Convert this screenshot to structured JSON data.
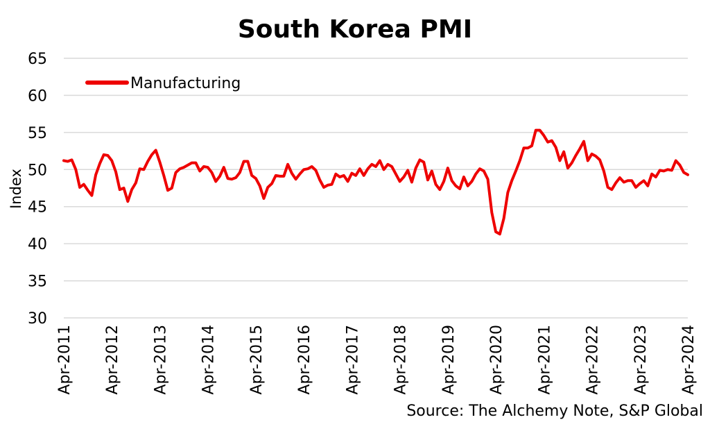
{
  "chart_data": {
    "type": "line",
    "title": "South Korea PMI",
    "ylabel": "Index",
    "xlabel": "",
    "source": "Source: The Alchemy Note, S&P Global",
    "ylim": [
      30,
      65
    ],
    "yticks": [
      30,
      35,
      40,
      45,
      50,
      55,
      60,
      65
    ],
    "grid": true,
    "legend_position": "top-left",
    "line_color": "#ee0000",
    "x_start": "Apr-2011",
    "x_end": "Apr-2024",
    "xtick_labels": [
      "Apr-2011",
      "Apr-2012",
      "Apr-2013",
      "Apr-2014",
      "Apr-2015",
      "Apr-2016",
      "Apr-2017",
      "Apr-2018",
      "Apr-2019",
      "Apr-2020",
      "Apr-2021",
      "Apr-2022",
      "Apr-2023",
      "Apr-2024"
    ],
    "series": [
      {
        "name": "Manufacturing",
        "values": [
          51.2,
          51.1,
          51.3,
          50.0,
          47.6,
          48.0,
          47.2,
          46.5,
          49.3,
          50.8,
          52.0,
          51.9,
          51.2,
          49.7,
          47.3,
          47.5,
          45.7,
          47.3,
          48.2,
          50.1,
          50.0,
          51.1,
          52.0,
          52.6,
          51.0,
          49.2,
          47.2,
          47.5,
          49.6,
          50.1,
          50.3,
          50.6,
          50.9,
          50.9,
          49.8,
          50.4,
          50.3,
          49.6,
          48.4,
          49.1,
          50.3,
          48.8,
          48.7,
          48.9,
          49.6,
          51.1,
          51.1,
          49.2,
          48.8,
          47.8,
          46.1,
          47.6,
          48.1,
          49.2,
          49.1,
          49.1,
          50.7,
          49.5,
          48.7,
          49.4,
          50.0,
          50.1,
          50.4,
          49.9,
          48.6,
          47.6,
          47.9,
          48.0,
          49.4,
          49.0,
          49.2,
          48.4,
          49.5,
          49.2,
          50.1,
          49.2,
          50.1,
          50.7,
          50.4,
          51.2,
          50.0,
          50.7,
          50.4,
          49.4,
          48.4,
          49.0,
          49.9,
          48.3,
          50.2,
          51.3,
          51.0,
          48.6,
          49.8,
          48.0,
          47.3,
          48.4,
          50.2,
          48.5,
          47.8,
          47.4,
          49.0,
          47.8,
          48.4,
          49.4,
          50.1,
          49.8,
          48.7,
          44.2,
          41.6,
          41.3,
          43.4,
          46.9,
          48.5,
          49.8,
          51.2,
          52.9,
          52.9,
          53.2,
          55.3,
          55.3,
          54.6,
          53.7,
          53.9,
          53.0,
          51.2,
          52.4,
          50.2,
          50.9,
          51.9,
          52.8,
          53.8,
          51.2,
          52.1,
          51.8,
          51.3,
          49.8,
          47.6,
          47.3,
          48.2,
          48.9,
          48.3,
          48.5,
          48.5,
          47.6,
          48.1,
          48.5,
          47.8,
          49.4,
          49.0,
          49.9,
          49.8,
          50.0,
          49.9,
          51.2,
          50.6,
          49.6,
          49.3
        ]
      }
    ]
  }
}
